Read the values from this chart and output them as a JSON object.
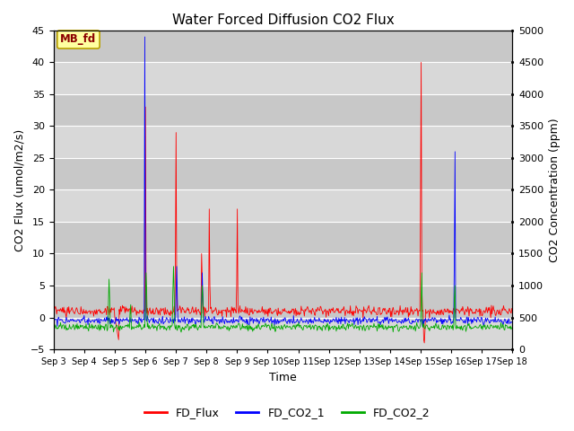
{
  "title": "Water Forced Diffusion CO2 Flux",
  "xlabel": "Time",
  "ylabel_left": "CO2 Flux (umol/m2/s)",
  "ylabel_right": "CO2 Concentration (ppm)",
  "ylim_left": [
    -5,
    45
  ],
  "ylim_right": [
    0,
    5000
  ],
  "yticks_left": [
    -5,
    0,
    5,
    10,
    15,
    20,
    25,
    30,
    35,
    40,
    45
  ],
  "yticks_right": [
    0,
    500,
    1000,
    1500,
    2000,
    2500,
    3000,
    3500,
    4000,
    4500,
    5000
  ],
  "xtick_labels": [
    "Sep 3",
    "Sep 4",
    "Sep 5",
    "Sep 6",
    "Sep 7",
    "Sep 8",
    "Sep 9",
    "Sep 10",
    "Sep 11",
    "Sep 12",
    "Sep 13",
    "Sep 14",
    "Sep 15",
    "Sep 16",
    "Sep 17",
    "Sep 18"
  ],
  "legend_entries": [
    "FD_Flux",
    "FD_CO2_1",
    "FD_CO2_2"
  ],
  "line_colors": [
    "#ff0000",
    "#0000ff",
    "#00aa00"
  ],
  "mb_fd_label": "MB_fd",
  "bg_color_light": "#d8d8d8",
  "bg_color_dark": "#c8c8c8",
  "fig_bg_color": "#ffffff",
  "grid_color": "#ffffff",
  "title_fontsize": 11,
  "label_fontsize": 9,
  "tick_fontsize": 8,
  "legend_fontsize": 9
}
